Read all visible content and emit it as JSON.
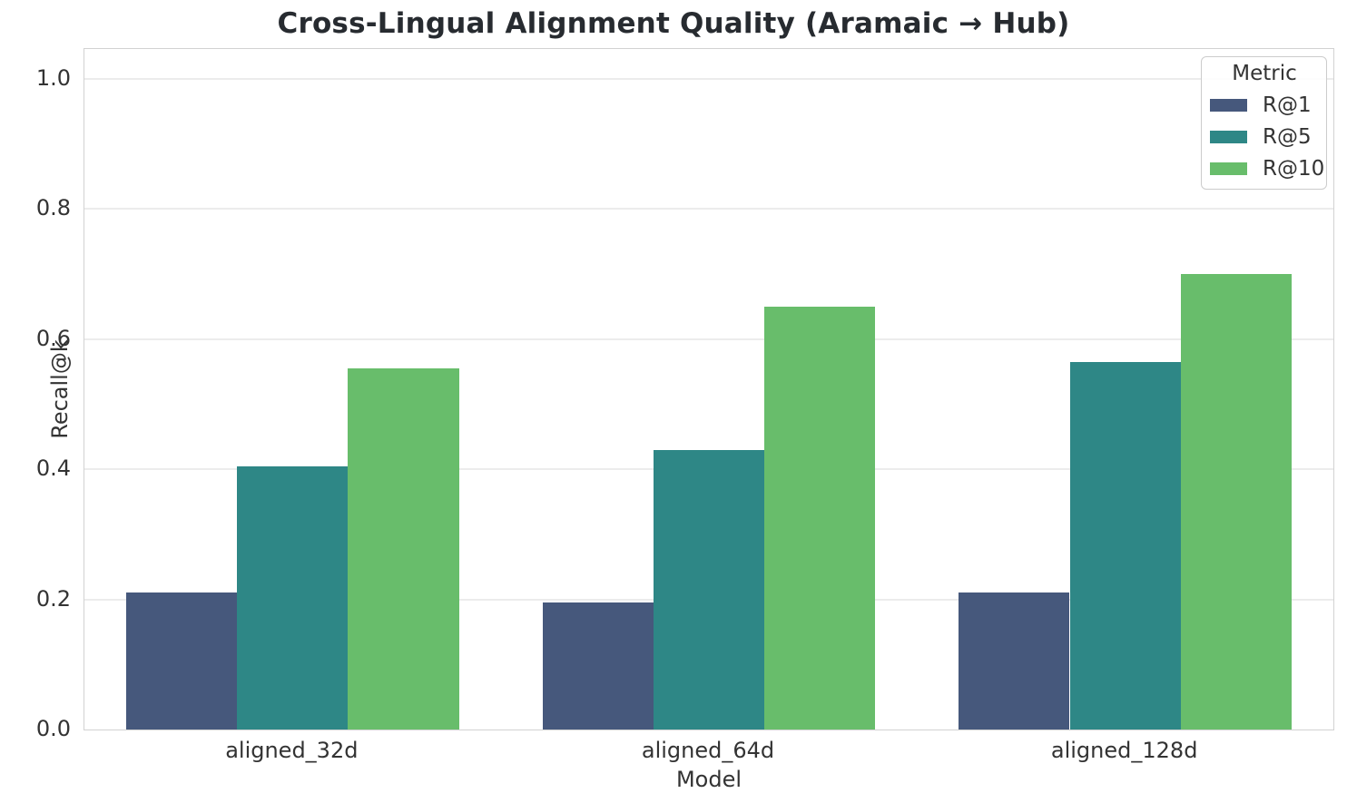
{
  "chart_data": {
    "type": "bar",
    "title": "Cross-Lingual Alignment Quality (Aramaic → Hub)",
    "xlabel": "Model",
    "ylabel": "Recall@k",
    "categories": [
      "aligned_32d",
      "aligned_64d",
      "aligned_128d"
    ],
    "series": [
      {
        "name": "R@1",
        "color": "#46587c",
        "values": [
          0.21,
          0.195,
          0.21
        ]
      },
      {
        "name": "R@5",
        "color": "#2e8786",
        "values": [
          0.405,
          0.43,
          0.565
        ]
      },
      {
        "name": "R@10",
        "color": "#68bd6b",
        "values": [
          0.555,
          0.65,
          0.7
        ]
      }
    ],
    "ylim": [
      0,
      1.046
    ],
    "yticks": [
      0.0,
      0.2,
      0.4,
      0.6,
      0.8,
      1.0
    ],
    "ytick_labels": [
      "0.0",
      "0.2",
      "0.4",
      "0.6",
      "0.8",
      "1.0"
    ],
    "grid": true,
    "legend": {
      "title": "Metric",
      "position": "upper right"
    },
    "bar_group_width_fraction": 0.8
  },
  "style": {
    "grid_color": "#ececec",
    "spine_color": "#d2d2d2",
    "text_color": "#333333",
    "title_color": "#272b30",
    "background": "#ffffff"
  }
}
